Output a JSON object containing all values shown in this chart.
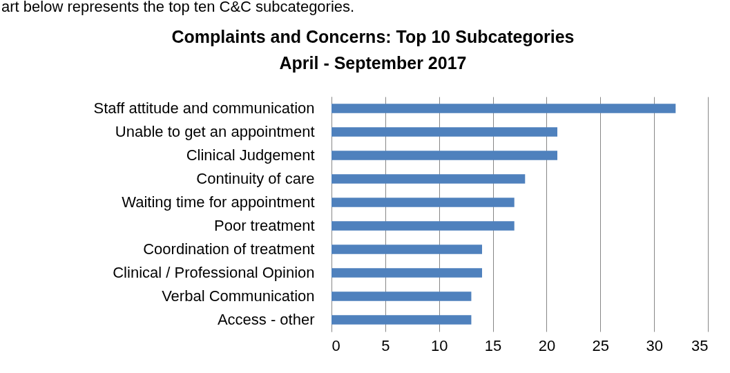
{
  "chart_data": {
    "type": "bar",
    "orientation": "horizontal",
    "title": "Complaints and Concerns: Top 10 Subcategories",
    "subtitle": "April - September 2017",
    "annotations": [
      "art below represents the top ten C&C subcategories."
    ],
    "categories": [
      "Staff attitude and communication",
      "Unable to get an appointment",
      "Clinical Judgement",
      "Continuity of care",
      "Waiting time for appointment",
      "Poor treatment",
      "Coordination of treatment",
      "Clinical / Professional Opinion",
      "Verbal Communication",
      "Access - other"
    ],
    "values": [
      32,
      21,
      21,
      18,
      17,
      17,
      14,
      14,
      13,
      13
    ],
    "color": "#4f81bd",
    "xlim": [
      0,
      35
    ],
    "xticks": [
      0,
      5,
      10,
      15,
      20,
      25,
      30,
      35
    ],
    "grid": "x"
  }
}
